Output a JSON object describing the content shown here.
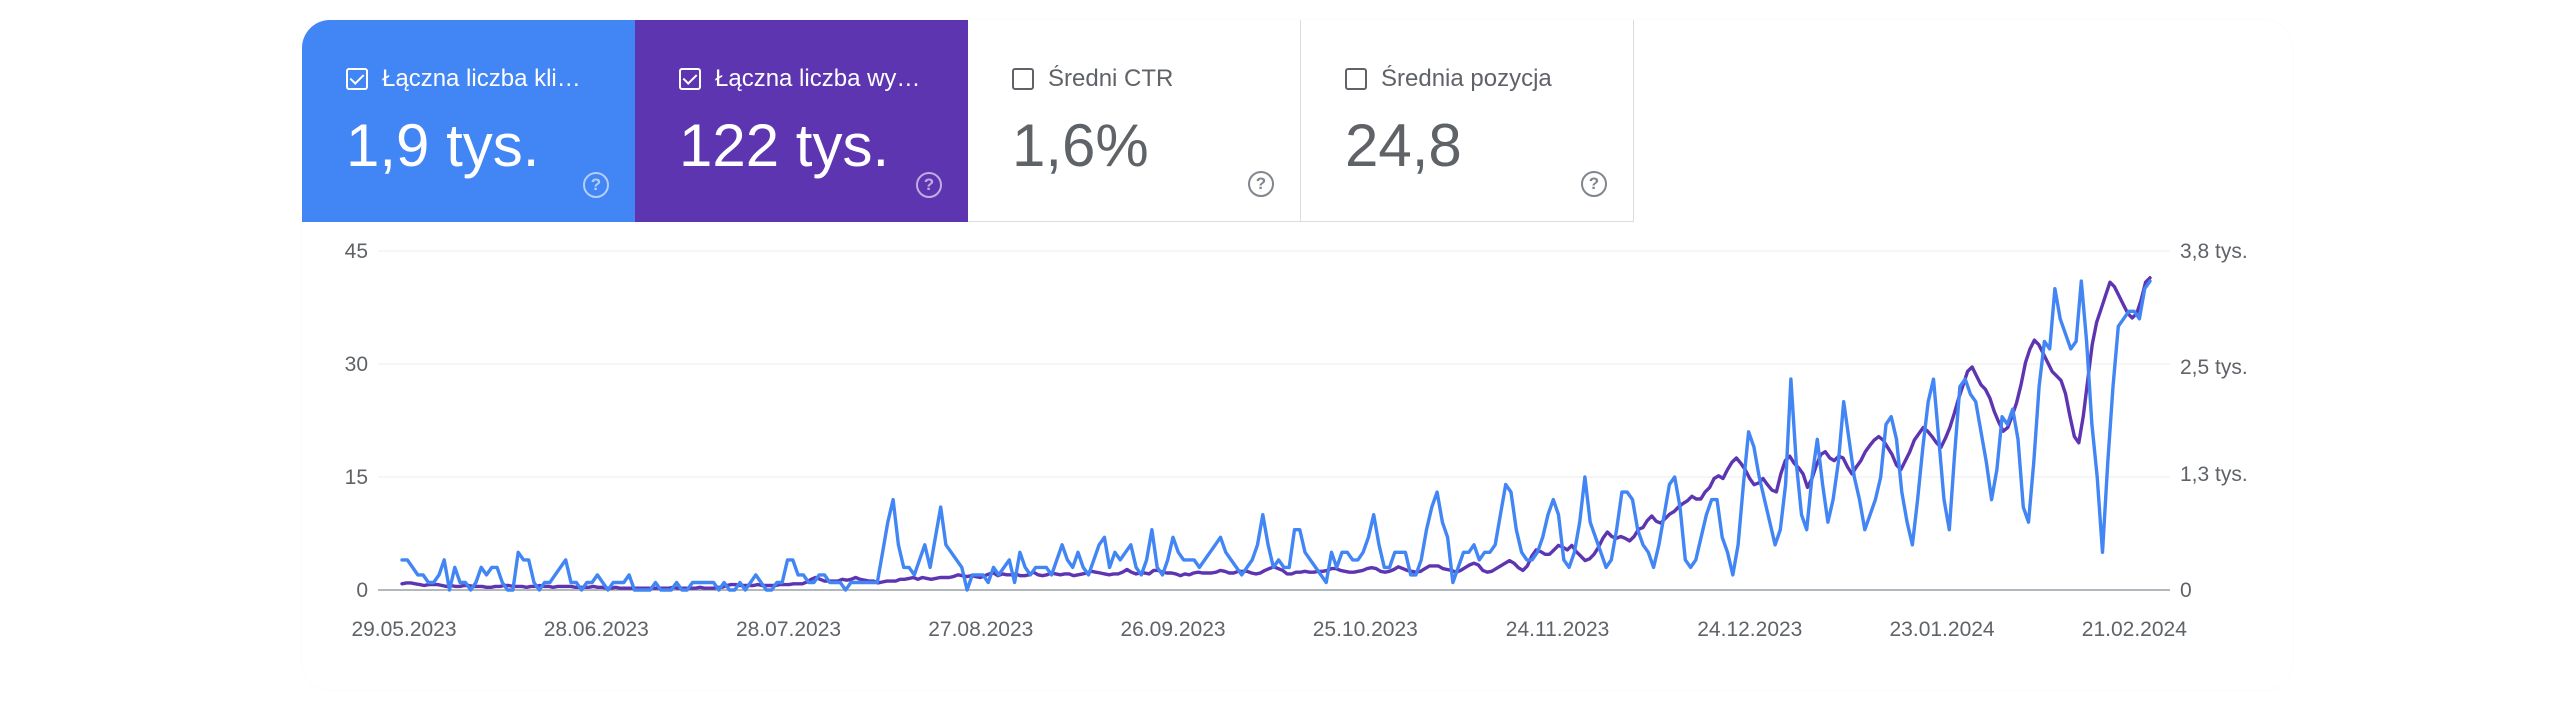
{
  "metrics": [
    {
      "label": "Łączna liczba klik…",
      "value": "1,9 tys.",
      "checked": true,
      "color": "#4285f4"
    },
    {
      "label": "Łączna liczba wy…",
      "value": "122 tys.",
      "checked": true,
      "color": "#5e35b1"
    },
    {
      "label": "Średni CTR",
      "value": "1,6%",
      "checked": false,
      "color": "#ffffff"
    },
    {
      "label": "Średnia pozycja",
      "value": "24,8",
      "checked": false,
      "color": "#ffffff"
    }
  ],
  "help_glyph": "?",
  "chart_data": {
    "type": "line",
    "x_labels": [
      "29.05.2023",
      "28.06.2023",
      "28.07.2023",
      "27.08.2023",
      "26.09.2023",
      "25.10.2023",
      "24.11.2023",
      "24.12.2023",
      "23.01.2024",
      "21.02.2024"
    ],
    "x_range": [
      "29.05.2023",
      "03.03.2024"
    ],
    "y_left": {
      "ticks": [
        0,
        15,
        30,
        45
      ],
      "tick_labels": [
        "0",
        "15",
        "30",
        "45"
      ],
      "range": [
        0,
        45
      ]
    },
    "y_right": {
      "ticks": [
        0,
        1.3,
        2.5,
        3.8
      ],
      "tick_labels": [
        "0",
        "1,3 tys.",
        "2,5 tys.",
        "3,8 tys."
      ],
      "range": [
        0,
        3.8
      ]
    },
    "grid": true,
    "series": [
      {
        "metric": "clicks",
        "axis": "left",
        "color": "#4285f4",
        "values": [
          4,
          4,
          3,
          2,
          2,
          1,
          1,
          2,
          4,
          0,
          3,
          1,
          1,
          0,
          1,
          3,
          2,
          3,
          3,
          1,
          0,
          0,
          5,
          4,
          4,
          1,
          0,
          1,
          1,
          2,
          3,
          4,
          1,
          1,
          0,
          1,
          1,
          2,
          1,
          0,
          1,
          1,
          1,
          2,
          0,
          0,
          0,
          0,
          1,
          0,
          0,
          0,
          1,
          0,
          0,
          1,
          1,
          1,
          1,
          1,
          0,
          1,
          0,
          0,
          1,
          0,
          1,
          2,
          1,
          0,
          0,
          1,
          1,
          4,
          4,
          2,
          2,
          1,
          1,
          2,
          2,
          1,
          1,
          1,
          0,
          1,
          1,
          1,
          1,
          1,
          1,
          5,
          9,
          12,
          6,
          3,
          3,
          2,
          4,
          6,
          3,
          7,
          11,
          6,
          5,
          4,
          3,
          0,
          2,
          2,
          2,
          1,
          3,
          2,
          3,
          4,
          1,
          5,
          3,
          2,
          3,
          3,
          3,
          2,
          4,
          6,
          4,
          3,
          5,
          3,
          2,
          4,
          6,
          7,
          3,
          5,
          4,
          5,
          6,
          3,
          2,
          4,
          8,
          3,
          2,
          4,
          7,
          5,
          4,
          4,
          4,
          3,
          4,
          5,
          6,
          7,
          5,
          4,
          3,
          2,
          3,
          4,
          6,
          10,
          6,
          3,
          4,
          3,
          3,
          8,
          8,
          5,
          4,
          3,
          2,
          1,
          5,
          3,
          5,
          5,
          4,
          4,
          5,
          7,
          10,
          6,
          3,
          3,
          5,
          5,
          5,
          2,
          2,
          4,
          8,
          11,
          13,
          9,
          7,
          1,
          3,
          5,
          5,
          6,
          4,
          5,
          5,
          6,
          10,
          14,
          13,
          8,
          5,
          4,
          4,
          5,
          7,
          10,
          12,
          10,
          4,
          3,
          5,
          9,
          15,
          9,
          7,
          5,
          3,
          4,
          8,
          13,
          13,
          12,
          8,
          6,
          5,
          3,
          6,
          10,
          14,
          15,
          11,
          4,
          3,
          4,
          7,
          10,
          12,
          12,
          7,
          5,
          2,
          6,
          14,
          21,
          19,
          15,
          12,
          9,
          6,
          8,
          14,
          28,
          17,
          10,
          8,
          15,
          20,
          14,
          9,
          12,
          17,
          25,
          20,
          15,
          12,
          8,
          10,
          12,
          15,
          22,
          23,
          20,
          13,
          9,
          6,
          12,
          19,
          25,
          28,
          20,
          12,
          8,
          18,
          27,
          28,
          26,
          25,
          21,
          17,
          12,
          16,
          23,
          22,
          24,
          20,
          11,
          9,
          17,
          27,
          33,
          32,
          40,
          36,
          34,
          32,
          33,
          41,
          33,
          22,
          15,
          5,
          17,
          27,
          35,
          36,
          37,
          37,
          36,
          40,
          41
        ]
      },
      {
        "metric": "impressions",
        "axis": "right",
        "color": "#5e35b1",
        "values": [
          0.07,
          0.08,
          0.08,
          0.07,
          0.06,
          0.05,
          0.06,
          0.06,
          0.06,
          0.05,
          0.04,
          0.05,
          0.04,
          0.04,
          0.05,
          0.05,
          0.04,
          0.04,
          0.04,
          0.03,
          0.03,
          0.04,
          0.04,
          0.05,
          0.05,
          0.04,
          0.04,
          0.04,
          0.03,
          0.04,
          0.04,
          0.05,
          0.04,
          0.04,
          0.03,
          0.04,
          0.04,
          0.04,
          0.04,
          0.03,
          0.03,
          0.03,
          0.03,
          0.04,
          0.03,
          0.03,
          0.02,
          0.02,
          0.03,
          0.02,
          0.02,
          0.02,
          0.02,
          0.02,
          0.02,
          0.02,
          0.02,
          0.02,
          0.02,
          0.02,
          0.02,
          0.03,
          0.02,
          0.02,
          0.02,
          0.02,
          0.02,
          0.03,
          0.02,
          0.02,
          0.02,
          0.03,
          0.03,
          0.05,
          0.06,
          0.06,
          0.05,
          0.05,
          0.05,
          0.05,
          0.06,
          0.05,
          0.05,
          0.05,
          0.05,
          0.06,
          0.06,
          0.06,
          0.07,
          0.07,
          0.07,
          0.09,
          0.12,
          0.14,
          0.12,
          0.1,
          0.1,
          0.1,
          0.1,
          0.12,
          0.11,
          0.12,
          0.14,
          0.12,
          0.11,
          0.1,
          0.1,
          0.08,
          0.09,
          0.1,
          0.1,
          0.1,
          0.12,
          0.12,
          0.13,
          0.14,
          0.12,
          0.14,
          0.13,
          0.12,
          0.13,
          0.14,
          0.14,
          0.14,
          0.15,
          0.17,
          0.16,
          0.15,
          0.16,
          0.15,
          0.14,
          0.16,
          0.18,
          0.19,
          0.16,
          0.18,
          0.17,
          0.17,
          0.18,
          0.16,
          0.16,
          0.17,
          0.2,
          0.17,
          0.16,
          0.17,
          0.19,
          0.18,
          0.17,
          0.18,
          0.18,
          0.16,
          0.17,
          0.18,
          0.19,
          0.21,
          0.2,
          0.19,
          0.18,
          0.17,
          0.18,
          0.18,
          0.2,
          0.23,
          0.2,
          0.18,
          0.19,
          0.19,
          0.18,
          0.22,
          0.22,
          0.2,
          0.19,
          0.19,
          0.18,
          0.16,
          0.18,
          0.17,
          0.19,
          0.2,
          0.19,
          0.19,
          0.19,
          0.2,
          0.22,
          0.21,
          0.19,
          0.19,
          0.21,
          0.21,
          0.21,
          0.19,
          0.18,
          0.19,
          0.22,
          0.24,
          0.26,
          0.24,
          0.22,
          0.18,
          0.18,
          0.2,
          0.2,
          0.21,
          0.2,
          0.2,
          0.21,
          0.21,
          0.22,
          0.24,
          0.24,
          0.22,
          0.21,
          0.2,
          0.2,
          0.21,
          0.22,
          0.24,
          0.25,
          0.24,
          0.21,
          0.2,
          0.21,
          0.23,
          0.26,
          0.24,
          0.22,
          0.21,
          0.2,
          0.21,
          0.24,
          0.27,
          0.27,
          0.27,
          0.24,
          0.23,
          0.22,
          0.2,
          0.22,
          0.25,
          0.28,
          0.3,
          0.28,
          0.22,
          0.2,
          0.21,
          0.24,
          0.27,
          0.3,
          0.33,
          0.3,
          0.25,
          0.22,
          0.27,
          0.38,
          0.45,
          0.43,
          0.4,
          0.4,
          0.45,
          0.5,
          0.48,
          0.45,
          0.5,
          0.43,
          0.38,
          0.33,
          0.35,
          0.4,
          0.48,
          0.58,
          0.65,
          0.6,
          0.58,
          0.6,
          0.58,
          0.55,
          0.6,
          0.68,
          0.7,
          0.78,
          0.83,
          0.77,
          0.75,
          0.8,
          0.85,
          0.88,
          0.93,
          0.97,
          1.0,
          1.05,
          1.02,
          1.02,
          1.1,
          1.15,
          1.25,
          1.28,
          1.25,
          1.35,
          1.43,
          1.48,
          1.42,
          1.35,
          1.25,
          1.18,
          1.2,
          1.25,
          1.18,
          1.12,
          1.1,
          1.3,
          1.45,
          1.5,
          1.42,
          1.37,
          1.3,
          1.15,
          1.25,
          1.4,
          1.52,
          1.55,
          1.48,
          1.45,
          1.5,
          1.48,
          1.38,
          1.3,
          1.38,
          1.45,
          1.55,
          1.62,
          1.68,
          1.72,
          1.68,
          1.6,
          1.52,
          1.4,
          1.35,
          1.45,
          1.55,
          1.68,
          1.75,
          1.82,
          1.78,
          1.72,
          1.65,
          1.6,
          1.7,
          1.82,
          1.98,
          2.15,
          2.3,
          2.45,
          2.5,
          2.4,
          2.3,
          2.25,
          2.15,
          2.0,
          1.88,
          1.78,
          1.82,
          1.95,
          2.1,
          2.3,
          2.55,
          2.7,
          2.8,
          2.75,
          2.65,
          2.55,
          2.45,
          2.4,
          2.35,
          2.2,
          1.95,
          1.72,
          1.65,
          1.95,
          2.35,
          2.75,
          3.0,
          3.15,
          3.3,
          3.45,
          3.4,
          3.3,
          3.2,
          3.1,
          3.05,
          3.1,
          3.25,
          3.45,
          3.5
        ]
      }
    ]
  }
}
